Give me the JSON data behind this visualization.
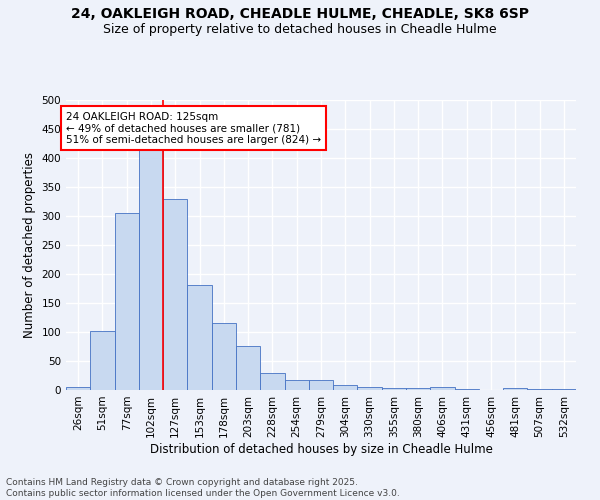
{
  "title_line1": "24, OAKLEIGH ROAD, CHEADLE HULME, CHEADLE, SK8 6SP",
  "title_line2": "Size of property relative to detached houses in Cheadle Hulme",
  "xlabel": "Distribution of detached houses by size in Cheadle Hulme",
  "ylabel": "Number of detached properties",
  "categories": [
    "26sqm",
    "51sqm",
    "77sqm",
    "102sqm",
    "127sqm",
    "153sqm",
    "178sqm",
    "203sqm",
    "228sqm",
    "254sqm",
    "279sqm",
    "304sqm",
    "330sqm",
    "355sqm",
    "380sqm",
    "406sqm",
    "431sqm",
    "456sqm",
    "481sqm",
    "507sqm",
    "532sqm"
  ],
  "values": [
    5,
    101,
    306,
    420,
    330,
    181,
    116,
    76,
    30,
    17,
    17,
    8,
    5,
    3,
    3,
    6,
    2,
    0,
    3,
    1,
    2
  ],
  "bar_color": "#c8d9f0",
  "bar_edge_color": "#4472c4",
  "vline_x_index": 3,
  "vline_color": "red",
  "annotation_text": "24 OAKLEIGH ROAD: 125sqm\n← 49% of detached houses are smaller (781)\n51% of semi-detached houses are larger (824) →",
  "annotation_box_color": "white",
  "annotation_edge_color": "red",
  "footer_text": "Contains HM Land Registry data © Crown copyright and database right 2025.\nContains public sector information licensed under the Open Government Licence v3.0.",
  "ylim": [
    0,
    500
  ],
  "yticks": [
    0,
    50,
    100,
    150,
    200,
    250,
    300,
    350,
    400,
    450,
    500
  ],
  "background_color": "#eef2fa",
  "grid_color": "white",
  "title_fontsize": 10,
  "subtitle_fontsize": 9,
  "label_fontsize": 8.5,
  "tick_fontsize": 7.5,
  "footer_fontsize": 6.5,
  "annotation_fontsize": 7.5
}
